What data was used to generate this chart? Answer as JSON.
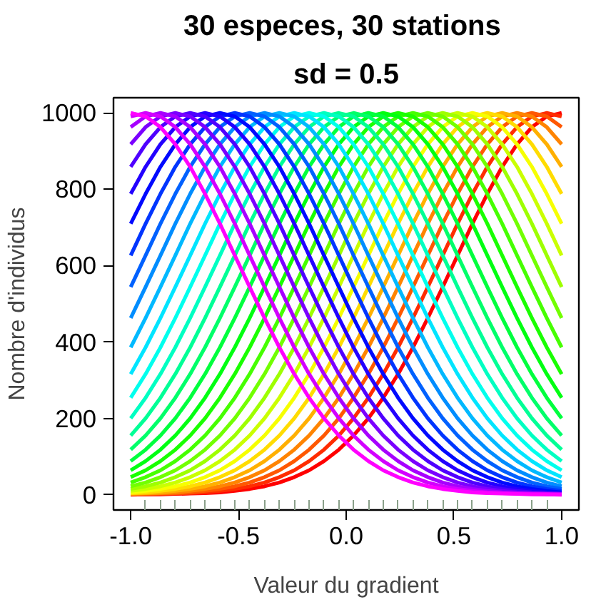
{
  "chart_data": {
    "type": "line",
    "title": "30 especes,  30 stations",
    "subtitle": "sd = 0.5",
    "xlabel": "Valeur du gradient",
    "ylabel": "Nombre d'individus",
    "x": [
      -1,
      -0.931,
      -0.862,
      -0.793,
      -0.724,
      -0.655,
      -0.586,
      -0.517,
      -0.448,
      -0.379,
      -0.31,
      -0.241,
      -0.172,
      -0.103,
      -0.034,
      0.034,
      0.103,
      0.172,
      0.241,
      0.31,
      0.379,
      0.448,
      0.517,
      0.586,
      0.655,
      0.724,
      0.793,
      0.862,
      0.931,
      1
    ],
    "xlim": [
      -1.08,
      1.08
    ],
    "ylim": [
      -40,
      1040
    ],
    "xticks": [
      {
        "value": -1,
        "label": "-1.0"
      },
      {
        "value": -0.5,
        "label": "-0.5"
      },
      {
        "value": 0,
        "label": "0.0"
      },
      {
        "value": 0.5,
        "label": "0.5"
      },
      {
        "value": 1,
        "label": "1.0"
      },
      {
        "value": -0.931,
        "label": null
      },
      {
        "value": -0.862,
        "label": null
      },
      {
        "value": -0.793,
        "label": null
      },
      {
        "value": -0.724,
        "label": null
      },
      {
        "value": -0.655,
        "label": null
      },
      {
        "value": -0.586,
        "label": null
      },
      {
        "value": -0.517,
        "label": null
      },
      {
        "value": -0.448,
        "label": null
      },
      {
        "value": -0.379,
        "label": null
      },
      {
        "value": -0.31,
        "label": null
      },
      {
        "value": -0.241,
        "label": null
      },
      {
        "value": -0.172,
        "label": null
      },
      {
        "value": -0.103,
        "label": null
      },
      {
        "value": -0.034,
        "label": null
      },
      {
        "value": 0.034,
        "label": null
      },
      {
        "value": 0.103,
        "label": null
      },
      {
        "value": 0.172,
        "label": null
      },
      {
        "value": 0.241,
        "label": null
      },
      {
        "value": 0.31,
        "label": null
      },
      {
        "value": 0.379,
        "label": null
      },
      {
        "value": 0.448,
        "label": null
      },
      {
        "value": 0.517,
        "label": null
      },
      {
        "value": 0.586,
        "label": null
      },
      {
        "value": 0.655,
        "label": null
      },
      {
        "value": 0.724,
        "label": null
      },
      {
        "value": 0.793,
        "label": null
      },
      {
        "value": 0.862,
        "label": null
      },
      {
        "value": 0.931,
        "label": null
      }
    ],
    "yticks": [
      0,
      200,
      400,
      600,
      800,
      1000
    ],
    "grid": false,
    "marker": "none",
    "line_style": "solid",
    "series": [
      {
        "color": "#ff0000",
        "values": [
          0,
          1,
          1,
          2,
          3,
          4,
          6,
          10,
          15,
          22,
          32,
          46,
          64,
          88,
          118,
          155,
          200,
          254,
          316,
          386,
          463,
          544,
          627,
          710,
          788,
          859,
          918,
          963,
          991,
          1000
        ]
      },
      {
        "color": "#ff2c00",
        "values": [
          1,
          1,
          2,
          3,
          4,
          6,
          10,
          15,
          22,
          32,
          46,
          64,
          88,
          118,
          155,
          200,
          254,
          316,
          386,
          463,
          544,
          627,
          710,
          788,
          859,
          918,
          963,
          991,
          1000,
          991
        ]
      },
      {
        "color": "#ff5800",
        "values": [
          1,
          2,
          3,
          4,
          6,
          10,
          15,
          22,
          32,
          46,
          64,
          88,
          118,
          155,
          200,
          254,
          316,
          386,
          463,
          544,
          627,
          710,
          788,
          859,
          918,
          963,
          991,
          1000,
          991,
          963
        ]
      },
      {
        "color": "#ff8400",
        "values": [
          2,
          3,
          4,
          6,
          10,
          15,
          22,
          32,
          46,
          64,
          88,
          118,
          155,
          200,
          254,
          316,
          386,
          463,
          544,
          627,
          710,
          788,
          859,
          918,
          963,
          991,
          1000,
          991,
          963,
          918
        ]
      },
      {
        "color": "#ffb000",
        "values": [
          3,
          4,
          6,
          10,
          15,
          22,
          32,
          46,
          64,
          88,
          118,
          155,
          200,
          254,
          316,
          386,
          463,
          544,
          627,
          710,
          788,
          859,
          918,
          963,
          991,
          1000,
          991,
          963,
          918,
          859
        ]
      },
      {
        "color": "#ffdc00",
        "values": [
          4,
          6,
          10,
          15,
          22,
          32,
          46,
          64,
          88,
          118,
          155,
          200,
          254,
          316,
          386,
          463,
          544,
          627,
          710,
          788,
          859,
          918,
          963,
          991,
          1000,
          991,
          963,
          918,
          859,
          788
        ]
      },
      {
        "color": "#f6ff00",
        "values": [
          6,
          10,
          15,
          22,
          32,
          46,
          64,
          88,
          118,
          155,
          200,
          254,
          316,
          386,
          463,
          544,
          627,
          710,
          788,
          859,
          918,
          963,
          991,
          1000,
          991,
          963,
          918,
          859,
          788,
          710
        ]
      },
      {
        "color": "#caff00",
        "values": [
          10,
          15,
          22,
          32,
          46,
          64,
          88,
          118,
          155,
          200,
          254,
          316,
          386,
          463,
          544,
          627,
          710,
          788,
          859,
          918,
          963,
          991,
          1000,
          991,
          963,
          918,
          859,
          788,
          710,
          627
        ]
      },
      {
        "color": "#9eff00",
        "values": [
          15,
          22,
          32,
          46,
          64,
          88,
          118,
          155,
          200,
          254,
          316,
          386,
          463,
          544,
          627,
          710,
          788,
          859,
          918,
          963,
          991,
          1000,
          991,
          963,
          918,
          859,
          788,
          710,
          627,
          544
        ]
      },
      {
        "color": "#72ff00",
        "values": [
          22,
          32,
          46,
          64,
          88,
          118,
          155,
          200,
          254,
          316,
          386,
          463,
          544,
          627,
          710,
          788,
          859,
          918,
          963,
          991,
          1000,
          991,
          963,
          918,
          859,
          788,
          710,
          627,
          544,
          463
        ]
      },
      {
        "color": "#46ff00",
        "values": [
          32,
          46,
          64,
          88,
          118,
          155,
          200,
          254,
          316,
          386,
          463,
          544,
          627,
          710,
          788,
          859,
          918,
          963,
          991,
          1000,
          991,
          963,
          918,
          859,
          788,
          710,
          627,
          544,
          463,
          386
        ]
      },
      {
        "color": "#1aff00",
        "values": [
          46,
          64,
          88,
          118,
          155,
          200,
          254,
          316,
          386,
          463,
          544,
          627,
          710,
          788,
          859,
          918,
          963,
          991,
          1000,
          991,
          963,
          918,
          859,
          788,
          710,
          627,
          544,
          463,
          386,
          316
        ]
      },
      {
        "color": "#00ff12",
        "values": [
          64,
          88,
          118,
          155,
          200,
          254,
          316,
          386,
          463,
          544,
          627,
          710,
          788,
          859,
          918,
          963,
          991,
          1000,
          991,
          963,
          918,
          859,
          788,
          710,
          627,
          544,
          463,
          386,
          316,
          254
        ]
      },
      {
        "color": "#00ff3e",
        "values": [
          88,
          118,
          155,
          200,
          254,
          316,
          386,
          463,
          544,
          627,
          710,
          788,
          859,
          918,
          963,
          991,
          1000,
          991,
          963,
          918,
          859,
          788,
          710,
          627,
          544,
          463,
          386,
          316,
          254,
          200
        ]
      },
      {
        "color": "#00ff6a",
        "values": [
          118,
          155,
          200,
          254,
          316,
          386,
          463,
          544,
          627,
          710,
          788,
          859,
          918,
          963,
          991,
          1000,
          991,
          963,
          918,
          859,
          788,
          710,
          627,
          544,
          463,
          386,
          316,
          254,
          200,
          155
        ]
      },
      {
        "color": "#00ff96",
        "values": [
          155,
          200,
          254,
          316,
          386,
          463,
          544,
          627,
          710,
          788,
          859,
          918,
          963,
          991,
          1000,
          991,
          963,
          918,
          859,
          788,
          710,
          627,
          544,
          463,
          386,
          316,
          254,
          200,
          155,
          118
        ]
      },
      {
        "color": "#00ffc2",
        "values": [
          200,
          254,
          316,
          386,
          463,
          544,
          627,
          710,
          788,
          859,
          918,
          963,
          991,
          1000,
          991,
          963,
          918,
          859,
          788,
          710,
          627,
          544,
          463,
          386,
          316,
          254,
          200,
          155,
          118,
          88
        ]
      },
      {
        "color": "#00ffed",
        "values": [
          254,
          316,
          386,
          463,
          544,
          627,
          710,
          788,
          859,
          918,
          963,
          991,
          1000,
          991,
          963,
          918,
          859,
          788,
          710,
          627,
          544,
          463,
          386,
          316,
          254,
          200,
          155,
          118,
          88,
          64
        ]
      },
      {
        "color": "#00e5ff",
        "values": [
          316,
          386,
          463,
          544,
          627,
          710,
          788,
          859,
          918,
          963,
          991,
          1000,
          991,
          963,
          918,
          859,
          788,
          710,
          627,
          544,
          463,
          386,
          316,
          254,
          200,
          155,
          118,
          88,
          64,
          46
        ]
      },
      {
        "color": "#00b9ff",
        "values": [
          386,
          463,
          544,
          627,
          710,
          788,
          859,
          918,
          963,
          991,
          1000,
          991,
          963,
          918,
          859,
          788,
          710,
          627,
          544,
          463,
          386,
          316,
          254,
          200,
          155,
          118,
          88,
          64,
          46,
          32
        ]
      },
      {
        "color": "#008dff",
        "values": [
          463,
          544,
          627,
          710,
          788,
          859,
          918,
          963,
          991,
          1000,
          991,
          963,
          918,
          859,
          788,
          710,
          627,
          544,
          463,
          386,
          316,
          254,
          200,
          155,
          118,
          88,
          64,
          46,
          32,
          22
        ]
      },
      {
        "color": "#0061ff",
        "values": [
          544,
          627,
          710,
          788,
          859,
          918,
          963,
          991,
          1000,
          991,
          963,
          918,
          859,
          788,
          710,
          627,
          544,
          463,
          386,
          316,
          254,
          200,
          155,
          118,
          88,
          64,
          46,
          32,
          22,
          15
        ]
      },
      {
        "color": "#0035ff",
        "values": [
          627,
          710,
          788,
          859,
          918,
          963,
          991,
          1000,
          991,
          963,
          918,
          859,
          788,
          710,
          627,
          544,
          463,
          386,
          316,
          254,
          200,
          155,
          118,
          88,
          64,
          46,
          32,
          22,
          15,
          10
        ]
      },
      {
        "color": "#0009ff",
        "values": [
          710,
          788,
          859,
          918,
          963,
          991,
          1000,
          991,
          963,
          918,
          859,
          788,
          710,
          627,
          544,
          463,
          386,
          316,
          254,
          200,
          155,
          118,
          88,
          64,
          46,
          32,
          22,
          15,
          10,
          6
        ]
      },
      {
        "color": "#2300ff",
        "values": [
          788,
          859,
          918,
          963,
          991,
          1000,
          991,
          963,
          918,
          859,
          788,
          710,
          627,
          544,
          463,
          386,
          316,
          254,
          200,
          155,
          118,
          88,
          64,
          46,
          32,
          22,
          15,
          10,
          6,
          4
        ]
      },
      {
        "color": "#4f00ff",
        "values": [
          859,
          918,
          963,
          991,
          1000,
          991,
          963,
          918,
          859,
          788,
          710,
          627,
          544,
          463,
          386,
          316,
          254,
          200,
          155,
          118,
          88,
          64,
          46,
          32,
          22,
          15,
          10,
          6,
          4,
          3
        ]
      },
      {
        "color": "#7b00ff",
        "values": [
          918,
          963,
          991,
          1000,
          991,
          963,
          918,
          859,
          788,
          710,
          627,
          544,
          463,
          386,
          316,
          254,
          200,
          155,
          118,
          88,
          64,
          46,
          32,
          22,
          15,
          10,
          6,
          4,
          3,
          2
        ]
      },
      {
        "color": "#a700ff",
        "values": [
          963,
          991,
          1000,
          991,
          963,
          918,
          859,
          788,
          710,
          627,
          544,
          463,
          386,
          316,
          254,
          200,
          155,
          118,
          88,
          64,
          46,
          32,
          22,
          15,
          10,
          6,
          4,
          3,
          2,
          1
        ]
      },
      {
        "color": "#d300ff",
        "values": [
          991,
          1000,
          991,
          963,
          918,
          859,
          788,
          710,
          627,
          544,
          463,
          386,
          316,
          254,
          200,
          155,
          118,
          88,
          64,
          46,
          32,
          22,
          15,
          10,
          6,
          4,
          3,
          2,
          1,
          1
        ]
      },
      {
        "color": "#ff00ff",
        "values": [
          1000,
          991,
          963,
          918,
          859,
          788,
          710,
          627,
          544,
          463,
          386,
          316,
          254,
          200,
          155,
          118,
          88,
          64,
          46,
          32,
          22,
          15,
          10,
          6,
          4,
          3,
          2,
          1,
          1,
          0
        ]
      }
    ]
  }
}
